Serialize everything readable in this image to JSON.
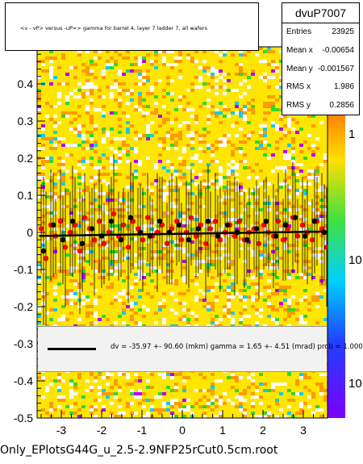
{
  "chart_data": {
    "type": "scatter",
    "title": "<v - vP>       versus  -uP=>  gamma for barrel 4, layer 7 ladder 7, all wafers",
    "xlabel": "",
    "ylabel": "",
    "xlim": [
      -3.6,
      3.6
    ],
    "ylim": [
      -0.5,
      0.5
    ],
    "x_ticks": [
      "-3",
      "-2",
      "-1",
      "0",
      "1",
      "2",
      "3"
    ],
    "x_tick_values": [
      -3,
      -2,
      -1,
      0,
      1,
      2,
      3
    ],
    "y_ticks": [
      "-0.5",
      "-0.4",
      "-0.3",
      "-0.2",
      "-0.1",
      "0",
      "0.1",
      "0.2",
      "0.3",
      "0.4"
    ],
    "y_tick_values": [
      -0.5,
      -0.4,
      -0.3,
      -0.2,
      -0.1,
      0,
      0.1,
      0.2,
      0.3,
      0.4
    ],
    "colorbar_labels": [
      "1",
      "10",
      "10"
    ],
    "grid": false,
    "series": [
      {
        "marker": "circle",
        "color": "#ff0000",
        "x": [
          -3.5,
          -3.38,
          -3.26,
          -3.14,
          -3.02,
          -2.9,
          -2.78,
          -2.66,
          -2.54,
          -2.42,
          -2.3,
          -2.18,
          -2.06,
          -1.94,
          -1.82,
          -1.7,
          -1.58,
          -1.46,
          -1.34,
          -1.22,
          -1.1,
          -0.98,
          -0.86,
          -0.74,
          -0.62,
          -0.5,
          -0.38,
          -0.26,
          -0.14,
          -0.02,
          0.1,
          0.22,
          0.34,
          0.46,
          0.58,
          0.7,
          0.82,
          0.94,
          1.06,
          1.18,
          1.3,
          1.42,
          1.54,
          1.66,
          1.78,
          1.9,
          2.02,
          2.14,
          2.26,
          2.38,
          2.5,
          2.62,
          2.74,
          2.86,
          2.98,
          3.1,
          3.22,
          3.34,
          3.46,
          3.58
        ],
        "y": [
          0.01,
          -0.07,
          0.02,
          -0.01,
          0.03,
          -0.04,
          0.0,
          0.02,
          -0.05,
          0.04,
          0.01,
          -0.02,
          0.03,
          -0.03,
          0.0,
          0.05,
          -0.01,
          0.02,
          -0.04,
          0.03,
          0.01,
          -0.02,
          0.04,
          -0.01,
          0.0,
          0.02,
          -0.03,
          0.01,
          0.03,
          -0.02,
          0.0,
          0.04,
          -0.01,
          0.02,
          -0.03,
          0.01,
          0.03,
          -0.02,
          0.0,
          0.02,
          -0.01,
          0.03,
          -0.02,
          0.0,
          0.01,
          -0.03,
          0.02,
          0.0,
          -0.01,
          0.03,
          -0.02,
          0.01,
          0.04,
          -0.01,
          0.02,
          0.0,
          -0.02,
          0.03,
          0.01,
          -0.04
        ],
        "yerr": [
          0.12,
          0.18,
          0.15,
          0.1,
          0.14,
          0.16,
          0.11,
          0.13,
          0.17,
          0.12,
          0.1,
          0.15,
          0.14,
          0.11,
          0.13,
          0.16,
          0.12,
          0.1,
          0.15,
          0.13,
          0.11,
          0.14,
          0.12,
          0.1,
          0.16,
          0.13,
          0.11,
          0.15,
          0.12,
          0.1,
          0.14,
          0.13,
          0.11,
          0.12,
          0.15,
          0.1,
          0.13,
          0.14,
          0.11,
          0.12,
          0.16,
          0.1,
          0.13,
          0.12,
          0.11,
          0.15,
          0.12,
          0.1,
          0.14,
          0.13,
          0.11,
          0.12,
          0.15,
          0.1,
          0.13,
          0.14,
          0.11,
          0.12,
          0.15,
          0.16
        ]
      },
      {
        "marker": "circle",
        "color": "#000000",
        "x": [
          -3.44,
          -3.2,
          -2.96,
          -2.72,
          -2.48,
          -2.24,
          -2.0,
          -1.76,
          -1.52,
          -1.28,
          -1.04,
          -0.8,
          -0.56,
          -0.32,
          -0.08,
          0.16,
          0.4,
          0.64,
          0.88,
          1.12,
          1.36,
          1.6,
          1.84,
          2.08,
          2.32,
          2.56,
          2.8,
          3.04,
          3.28,
          3.52
        ],
        "y": [
          -0.05,
          0.02,
          -0.02,
          0.03,
          -0.03,
          0.01,
          -0.01,
          0.03,
          -0.02,
          0.04,
          0.0,
          -0.01,
          0.03,
          0.0,
          0.02,
          -0.02,
          0.01,
          0.03,
          -0.01,
          0.02,
          0.0,
          -0.02,
          0.01,
          0.03,
          -0.01,
          0.02,
          0.04,
          -0.01,
          0.03,
          0.0
        ],
        "yerr": [
          0.2,
          0.14,
          0.12,
          0.15,
          0.13,
          0.11,
          0.14,
          0.12,
          0.1,
          0.15,
          0.13,
          0.11,
          0.12,
          0.14,
          0.1,
          0.13,
          0.12,
          0.15,
          0.11,
          0.12,
          0.14,
          0.1,
          0.13,
          0.12,
          0.11,
          0.15,
          0.12,
          0.1,
          0.14,
          0.13
        ]
      }
    ],
    "fit": {
      "text": "dv =  -35.97 +- 90.60 (mkm) gamma =     1.65 +-   4.51 (mrad) prob = 1.000",
      "slope_mrad": 1.65,
      "intercept_mkm": -35.97
    }
  },
  "stats": {
    "title": "dvuP7007",
    "rows": [
      {
        "k": "Entries",
        "v": "23925"
      },
      {
        "k": "Mean x",
        "v": "-0.00654"
      },
      {
        "k": "Mean y",
        "v": "-0.001567"
      },
      {
        "k": "RMS x",
        "v": "1.986"
      },
      {
        "k": "RMS y",
        "v": "0.2856"
      }
    ]
  },
  "footer": "Only_EPlotsG44G_u_2.5-2.9NFP25rCut0.5cm.root",
  "colors": {
    "heat_yellow": "#ffe600",
    "heat_orange": "#ff9a00",
    "heat_green": "#2ed82e",
    "heat_blue": "#19c8e6",
    "heat_magenta": "#b300ff",
    "points_red": "#ff0000",
    "points_black": "#000000",
    "fit_box": "#f2f2f2"
  }
}
